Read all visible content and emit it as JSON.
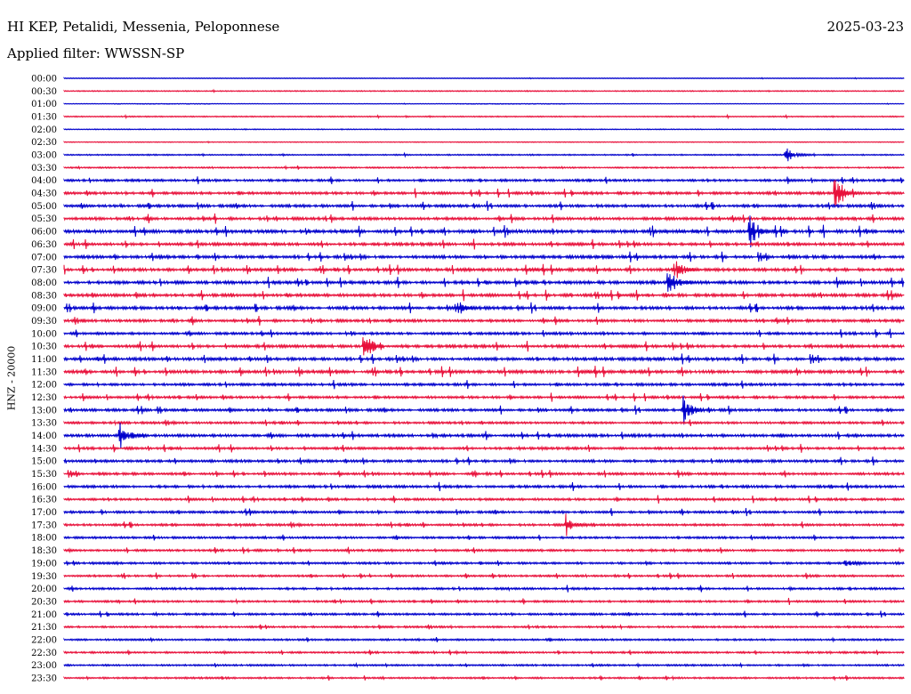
{
  "header": {
    "station": "HI KEP, Petalidi, Messenia, Peloponnese",
    "date": "2025-03-23",
    "filter": "Applied filter: WWSSN-SP",
    "channel_label": "HNZ - 20000"
  },
  "colors": {
    "even": "#0000cc",
    "odd": "#e8103a"
  },
  "chart_data": {
    "type": "helicorder",
    "title": "HI KEP, Petalidi, Messenia, Peloponnese",
    "date": "2025-03-23",
    "ylabel": "HNZ - 20000",
    "row_labels": [
      "00:00",
      "00:30",
      "01:00",
      "01:30",
      "02:00",
      "02:30",
      "03:00",
      "03:30",
      "04:00",
      "04:30",
      "05:00",
      "05:30",
      "06:00",
      "06:30",
      "07:00",
      "07:30",
      "08:00",
      "08:30",
      "09:00",
      "09:30",
      "10:00",
      "10:30",
      "11:00",
      "11:30",
      "12:00",
      "12:30",
      "13:00",
      "13:30",
      "14:00",
      "14:30",
      "15:00",
      "15:30",
      "16:00",
      "16:30",
      "17:00",
      "17:30",
      "18:00",
      "18:30",
      "19:00",
      "19:30",
      "20:00",
      "20:30",
      "21:00",
      "21:30",
      "22:00",
      "22:30",
      "23:00",
      "23:30"
    ],
    "row_colors": [
      "even",
      "odd"
    ],
    "activity": [
      0.1,
      0.15,
      0.05,
      0.2,
      0.1,
      0.1,
      0.25,
      0.3,
      0.6,
      0.7,
      0.75,
      0.8,
      1.0,
      0.8,
      0.85,
      0.85,
      0.9,
      0.85,
      0.85,
      0.75,
      0.7,
      0.8,
      0.85,
      0.9,
      0.7,
      0.65,
      0.7,
      0.6,
      0.8,
      0.65,
      0.7,
      0.65,
      0.7,
      0.6,
      0.6,
      0.6,
      0.55,
      0.55,
      0.55,
      0.5,
      0.55,
      0.5,
      0.5,
      0.45,
      0.45,
      0.45,
      0.4,
      0.4
    ],
    "events": [
      {
        "row": 12,
        "minute": 24.5,
        "amplitude": 1.4
      },
      {
        "row": 9,
        "minute": 27.5,
        "amplitude": 1.3
      },
      {
        "row": 16,
        "minute": 21.6,
        "amplitude": 1.1
      },
      {
        "row": 15,
        "minute": 21.8,
        "amplitude": 1.0
      },
      {
        "row": 18,
        "minute": 14.0,
        "amplitude": 0.8
      },
      {
        "row": 21,
        "minute": 10.7,
        "amplitude": 1.4
      },
      {
        "row": 26,
        "minute": 22.1,
        "amplitude": 1.2
      },
      {
        "row": 28,
        "minute": 2.0,
        "amplitude": 1.0
      },
      {
        "row": 35,
        "minute": 17.9,
        "amplitude": 1.0
      },
      {
        "row": 6,
        "minute": 25.8,
        "amplitude": 0.6
      },
      {
        "row": 38,
        "minute": 27.9,
        "amplitude": 0.4
      }
    ]
  }
}
